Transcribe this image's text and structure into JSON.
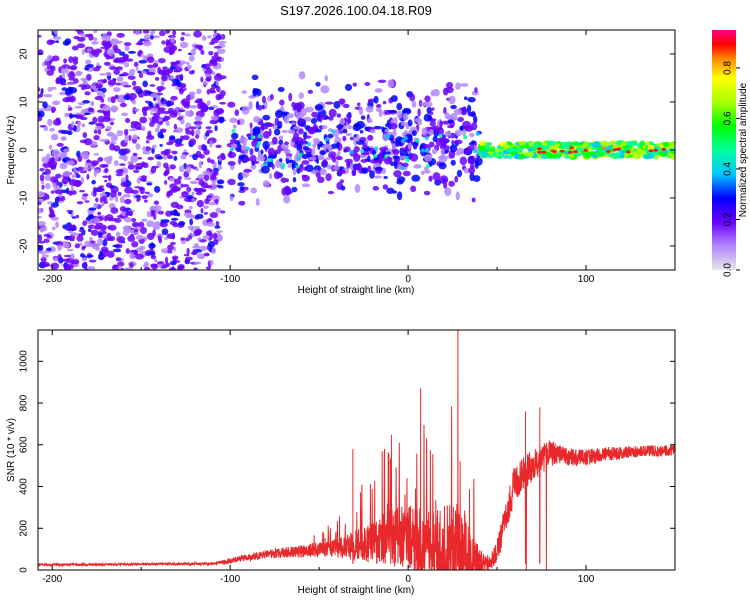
{
  "title": "S197.2026.100.04.18.R09",
  "chart_data": [
    {
      "type": "heatmap",
      "title": "S197.2026.100.04.18.R09",
      "xlabel": "Height of straight line (km)",
      "ylabel": "Frequency (Hz)",
      "xlim": [
        -208,
        150
      ],
      "ylim": [
        -25,
        25
      ],
      "xticks": [
        -200,
        -100,
        0,
        100
      ],
      "yticks": [
        -20,
        -10,
        0,
        10,
        20
      ],
      "colorbar": {
        "label": "Normalized spectral amplitude",
        "range": [
          0.0,
          0.95
        ],
        "ticks": [
          0.0,
          0.2,
          0.4,
          0.6,
          0.8
        ],
        "colormap": [
          "#e6e6e6",
          "#b386ff",
          "#6a00ff",
          "#0000ff",
          "#00c8ff",
          "#00ff9a",
          "#00ff00",
          "#aaff00",
          "#ffff00",
          "#ff8800",
          "#ff0000",
          "#ff0088"
        ]
      },
      "description_regions": [
        {
          "x_range": [
            -208,
            -105
          ],
          "freq_range": [
            -25,
            25
          ],
          "amplitude": "low, noisy"
        },
        {
          "x_range": [
            -100,
            40
          ],
          "freq_range": [
            -15,
            12
          ],
          "amplitude": "low-medium, centered near 0-5 Hz"
        },
        {
          "x_range": [
            40,
            150
          ],
          "freq_range": [
            -2,
            2
          ],
          "amplitude": "high, narrow band at ~0 Hz"
        }
      ]
    },
    {
      "type": "line",
      "xlabel": "Height of straight line (km)",
      "ylabel": "SNR (10 * v/v)",
      "xlim": [
        -208,
        150
      ],
      "ylim": [
        0,
        1150
      ],
      "xticks": [
        -200,
        -100,
        0,
        100
      ],
      "yticks": [
        0,
        200,
        400,
        600,
        800,
        1000
      ],
      "series": [
        {
          "name": "SNR",
          "color": "#e8282b",
          "x": [
            -208,
            -150,
            -110,
            -100,
            -80,
            -60,
            -40,
            -20,
            -10,
            0,
            10,
            20,
            30,
            40,
            45,
            50,
            60,
            70,
            80,
            90,
            100,
            110,
            120,
            130,
            140,
            150
          ],
          "base": [
            25,
            28,
            30,
            45,
            75,
            90,
            105,
            130,
            150,
            150,
            130,
            115,
            100,
            30,
            20,
            90,
            420,
            500,
            560,
            540,
            540,
            555,
            560,
            570,
            570,
            575
          ],
          "spread": [
            10,
            10,
            12,
            25,
            40,
            60,
            90,
            200,
            280,
            330,
            350,
            400,
            450,
            150,
            60,
            120,
            180,
            150,
            130,
            90,
            80,
            70,
            60,
            55,
            55,
            55
          ]
        }
      ],
      "notable_peaks": [
        {
          "x": 7,
          "y": 870
        },
        {
          "x": 28,
          "y": 1150
        },
        {
          "x": -31,
          "y": 580
        },
        {
          "x": 66,
          "y": 760
        },
        {
          "x": 74,
          "y": 780
        }
      ]
    }
  ]
}
